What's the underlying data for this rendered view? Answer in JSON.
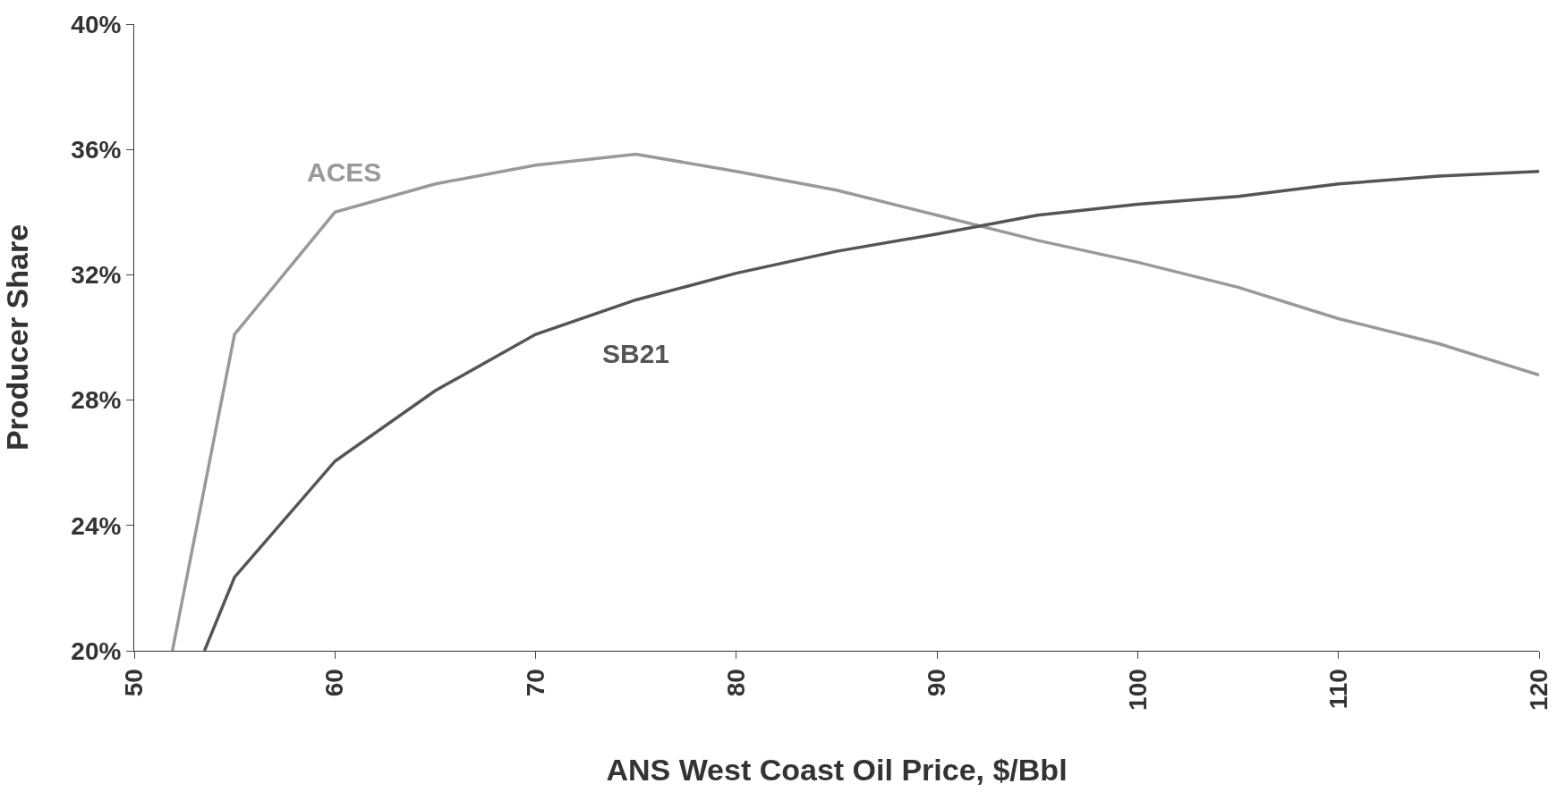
{
  "chart_data": {
    "type": "line",
    "xlabel": "ANS West Coast Oil Price, $/Bbl",
    "ylabel": "Producer Share",
    "xlim": [
      50,
      120
    ],
    "xticks": [
      50,
      60,
      70,
      80,
      90,
      100,
      110,
      120
    ],
    "ylim": [
      20,
      40
    ],
    "yticks": [
      {
        "value": 20,
        "label": "20%"
      },
      {
        "value": 24,
        "label": "24%"
      },
      {
        "value": 28,
        "label": "28%"
      },
      {
        "value": 32,
        "label": "32%"
      },
      {
        "value": 36,
        "label": "36%"
      },
      {
        "value": 40,
        "label": "40%"
      }
    ],
    "grid": false,
    "legend": false,
    "marker": "none",
    "line_style": "solid",
    "series": [
      {
        "name": "ACES",
        "color": "#999999",
        "x": [
          51.9,
          55,
          60,
          65,
          70,
          75,
          80,
          85,
          90,
          95,
          100,
          105,
          110,
          115,
          120
        ],
        "values": [
          20,
          30.1,
          34.0,
          34.9,
          35.5,
          35.85,
          35.3,
          34.7,
          33.9,
          33.1,
          32.4,
          31.6,
          30.6,
          29.8,
          28.8
        ]
      },
      {
        "name": "SB21",
        "color": "#555555",
        "x": [
          53.5,
          55,
          60,
          65,
          70,
          75,
          80,
          85,
          90,
          95,
          100,
          105,
          110,
          115,
          120
        ],
        "values": [
          20,
          22.35,
          26.05,
          28.3,
          30.1,
          31.2,
          32.05,
          32.75,
          33.3,
          33.9,
          34.25,
          34.5,
          34.9,
          35.15,
          35.3
        ]
      }
    ]
  }
}
